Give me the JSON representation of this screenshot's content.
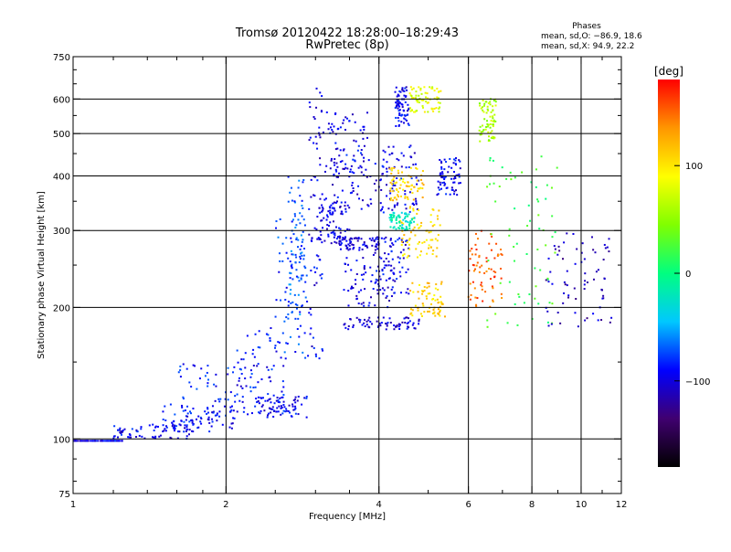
{
  "chart_data": {
    "type": "scatter",
    "title": "Tromsø 20120422 18:28:00–18:29:43",
    "subtitle": "RwPretec (8p)",
    "xlabel": "Frequency [MHz]",
    "ylabel": "Stationary phase Virtual Height [km]",
    "x_scale": "log",
    "y_scale": "log",
    "xlim": [
      1,
      12
    ],
    "ylim": [
      75,
      750
    ],
    "x_ticks": [
      1,
      2,
      4,
      6,
      8,
      10,
      12
    ],
    "x_tick_labels": [
      "1",
      "2",
      "4",
      "6",
      "8",
      "10",
      "12"
    ],
    "x_minor_ticks": [
      1.2,
      1.4,
      1.6,
      1.8,
      2.5,
      3,
      3.5,
      5,
      7,
      9,
      11
    ],
    "x_gridlines": [
      2,
      4,
      6,
      8,
      10
    ],
    "y_ticks": [
      75,
      100,
      200,
      300,
      400,
      500,
      600,
      750
    ],
    "y_tick_labels": [
      "75",
      "100",
      "200",
      "300",
      "400",
      "500",
      "600",
      "750"
    ],
    "y_gridlines": [
      100,
      200,
      300,
      400,
      500,
      600
    ],
    "grid": true,
    "phases": {
      "title": "Phases",
      "line_o": "mean, sd,O: −86.9, 18.6",
      "line_x": "mean, sd,X:  94.9, 22.2"
    },
    "colorbar": {
      "label": "[deg]",
      "range": [
        -180,
        180
      ],
      "ticks": [
        100,
        0,
        -100
      ],
      "tick_labels": [
        "100",
        "0",
        "−100"
      ],
      "colors": [
        "#000000",
        "#400070",
        "#0000ff",
        "#00c8ff",
        "#00ff80",
        "#80ff00",
        "#ffff00",
        "#ff9600",
        "#ff0000"
      ]
    },
    "series": [
      {
        "x": [
          1.0,
          1.25
        ],
        "y": [
          99,
          99
        ],
        "phase": -95
      },
      {
        "x": [
          1.2,
          1.7
        ],
        "y": [
          100,
          108
        ],
        "phase": -95
      },
      {
        "x": [
          1.5,
          2.1
        ],
        "y": [
          104,
          120
        ],
        "phase": -90
      },
      {
        "x": [
          1.6,
          2.3
        ],
        "y": [
          108,
          150
        ],
        "phase": -85
      },
      {
        "x": [
          2.1,
          2.6
        ],
        "y": [
          112,
          180
        ],
        "phase": -90
      },
      {
        "x": [
          2.3,
          2.9
        ],
        "y": [
          112,
          125
        ],
        "phase": -95
      },
      {
        "x": [
          2.5,
          2.9
        ],
        "y": [
          150,
          320
        ],
        "phase": -80
      },
      {
        "x": [
          2.65,
          2.85
        ],
        "y": [
          190,
          400
        ],
        "phase": -70
      },
      {
        "x": [
          3.05,
          3.5
        ],
        "y": [
          280,
          350
        ],
        "phase": -100
      },
      {
        "x": [
          3.05,
          4.2
        ],
        "y": [
          330,
          460
        ],
        "phase": -100
      },
      {
        "x": [
          3.3,
          4.0
        ],
        "y": [
          270,
          290
        ],
        "phase": -100
      },
      {
        "x": [
          3.1,
          3.8
        ],
        "y": [
          400,
          560
        ],
        "phase": -95
      },
      {
        "x": [
          3.4,
          4.3
        ],
        "y": [
          200,
          260
        ],
        "phase": -100
      },
      {
        "x": [
          3.4,
          4.8
        ],
        "y": [
          178,
          190
        ],
        "phase": -100
      },
      {
        "x": [
          3.9,
          4.6
        ],
        "y": [
          215,
          290
        ],
        "phase": -95
      },
      {
        "x": [
          4.0,
          4.8
        ],
        "y": [
          330,
          470
        ],
        "phase": -95
      },
      {
        "x": [
          4.2,
          4.9
        ],
        "y": [
          350,
          420
        ],
        "phase": 110
      },
      {
        "x": [
          4.4,
          5.3
        ],
        "y": [
          260,
          340
        ],
        "phase": 105
      },
      {
        "x": [
          4.6,
          5.4
        ],
        "y": [
          190,
          230
        ],
        "phase": 110
      },
      {
        "x": [
          4.2,
          4.7
        ],
        "y": [
          300,
          330
        ],
        "phase": -20
      },
      {
        "x": [
          5.2,
          5.8
        ],
        "y": [
          360,
          440
        ],
        "phase": -95
      },
      {
        "x": [
          4.3,
          4.6
        ],
        "y": [
          520,
          640
        ],
        "phase": -95
      },
      {
        "x": [
          4.6,
          5.3
        ],
        "y": [
          560,
          640
        ],
        "phase": 80
      },
      {
        "x": [
          6.0,
          7.0
        ],
        "y": [
          200,
          300
        ],
        "phase": 150
      },
      {
        "x": [
          6.5,
          9.0
        ],
        "y": [
          180,
          450
        ],
        "phase": 20
      },
      {
        "x": [
          8.5,
          11.5
        ],
        "y": [
          180,
          300
        ],
        "phase": -110
      },
      {
        "x": [
          6.3,
          6.8
        ],
        "y": [
          480,
          600
        ],
        "phase": 60
      },
      {
        "x": [
          2.9,
          3.1
        ],
        "y": [
          150,
          640
        ],
        "phase": -95
      }
    ]
  }
}
